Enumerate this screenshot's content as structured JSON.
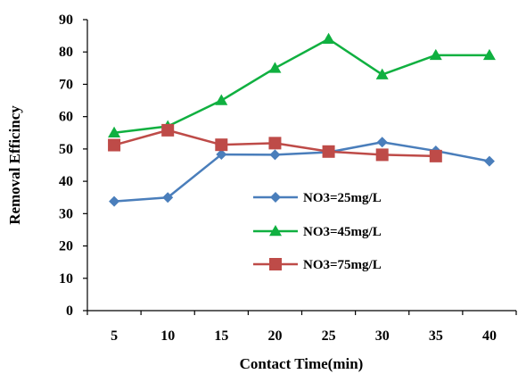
{
  "chart_data": {
    "type": "line",
    "title": "",
    "xlabel": "Contact Time(min)",
    "ylabel": "Removal Efficincy",
    "x": [
      "5",
      "10",
      "15",
      "20",
      "25",
      "30",
      "35",
      "40"
    ],
    "ylim": [
      0,
      90
    ],
    "yticks": [
      "0",
      "10",
      "20",
      "30",
      "40",
      "50",
      "60",
      "70",
      "80",
      "90"
    ],
    "grid": false,
    "legend_position": "center-right",
    "series": [
      {
        "name": "NO3=25mg/L",
        "color": "#4a7ebb",
        "marker": "diamond",
        "values": [
          33.8,
          35.0,
          48.3,
          48.2,
          49.0,
          52.1,
          49.4,
          46.2
        ]
      },
      {
        "name": "NO3=45mg/L",
        "color": "#10b040",
        "marker": "triangle",
        "values": [
          55.0,
          57.0,
          65.0,
          75.0,
          84.0,
          73.0,
          79.0,
          79.0
        ]
      },
      {
        "name": "NO3=75mg/L",
        "color": "#be4b48",
        "marker": "square",
        "values": [
          51.2,
          55.8,
          51.3,
          51.8,
          49.2,
          48.2,
          47.8,
          null
        ]
      }
    ]
  }
}
